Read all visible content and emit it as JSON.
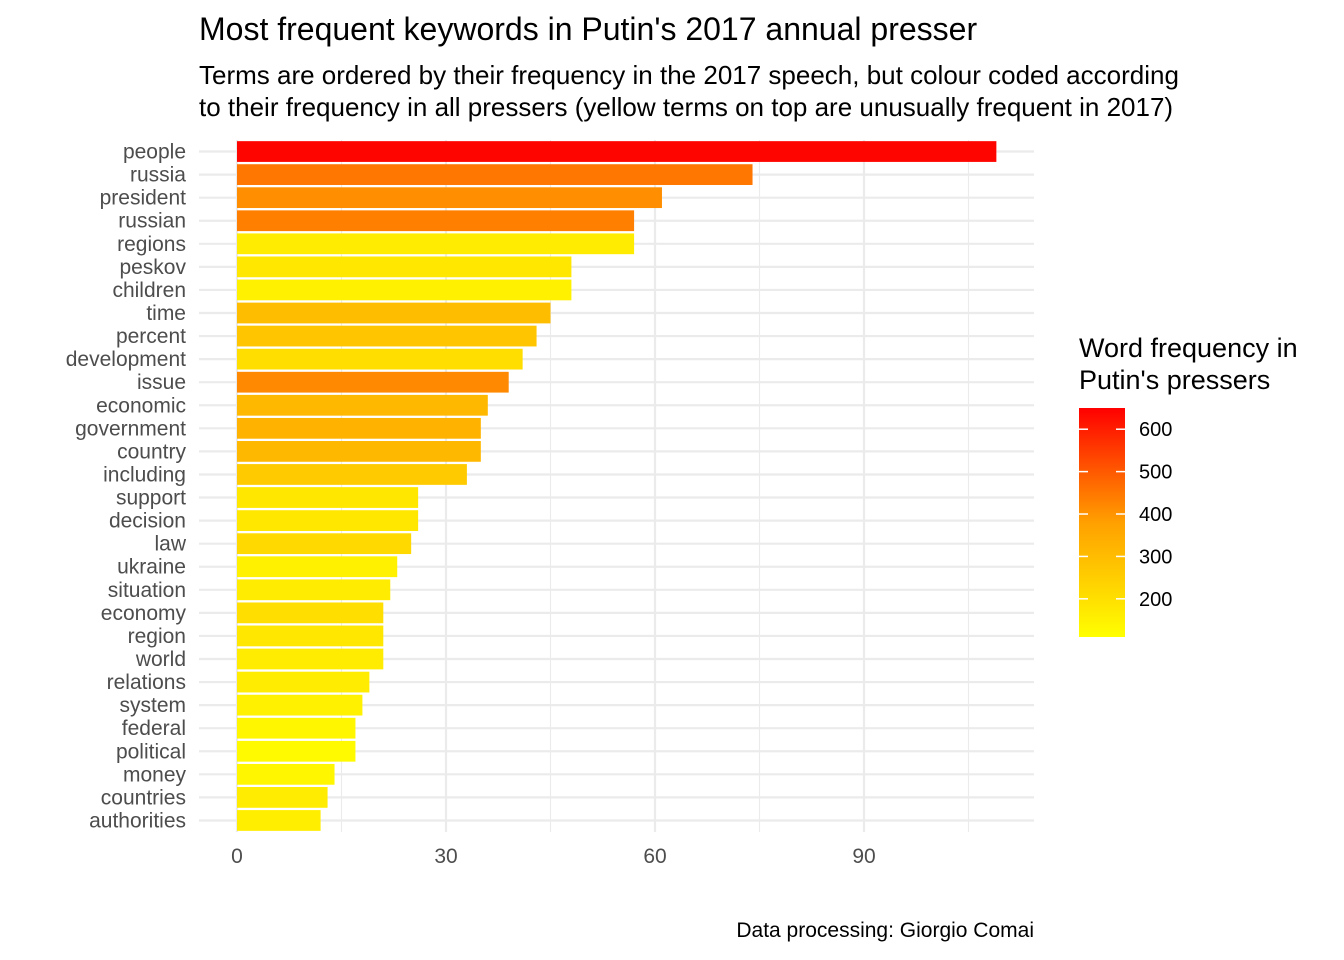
{
  "chart_data": {
    "type": "bar",
    "orientation": "horizontal",
    "title": "Most frequent keywords in Putin's 2017 annual presser",
    "subtitle": [
      "Terms are ordered by their frequency in the 2017 speech, but colour coded according",
      "to their frequency in all pressers (yellow terms on top are unusually frequent in 2017)"
    ],
    "categories": [
      "people",
      "russia",
      "president",
      "russian",
      "regions",
      "peskov",
      "children",
      "time",
      "percent",
      "development",
      "issue",
      "economic",
      "government",
      "country",
      "including",
      "support",
      "decision",
      "law",
      "ukraine",
      "situation",
      "economy",
      "region",
      "world",
      "relations",
      "system",
      "federal",
      "political",
      "money",
      "countries",
      "authorities"
    ],
    "values": [
      109,
      74,
      61,
      57,
      57,
      48,
      48,
      45,
      43,
      41,
      39,
      36,
      35,
      35,
      33,
      26,
      26,
      25,
      23,
      22,
      21,
      21,
      21,
      19,
      18,
      17,
      17,
      14,
      13,
      12
    ],
    "fill_values": [
      640,
      400,
      350,
      380,
      150,
      160,
      140,
      250,
      230,
      180,
      360,
      260,
      270,
      260,
      220,
      160,
      160,
      190,
      140,
      150,
      180,
      160,
      150,
      150,
      140,
      130,
      120,
      130,
      150,
      145
    ],
    "xlim": [
      0,
      114
    ],
    "x_ticks": [
      0,
      30,
      60,
      90
    ],
    "grid": true,
    "legend": {
      "title": [
        "Word frequency in",
        "Putin's pressers"
      ],
      "ticks": [
        200,
        300,
        400,
        500,
        600
      ],
      "range": [
        110,
        650
      ],
      "colors": [
        "#FFFF00",
        "#FF0000"
      ],
      "position": "right"
    },
    "caption": "Data processing:  Giorgio Comai"
  }
}
